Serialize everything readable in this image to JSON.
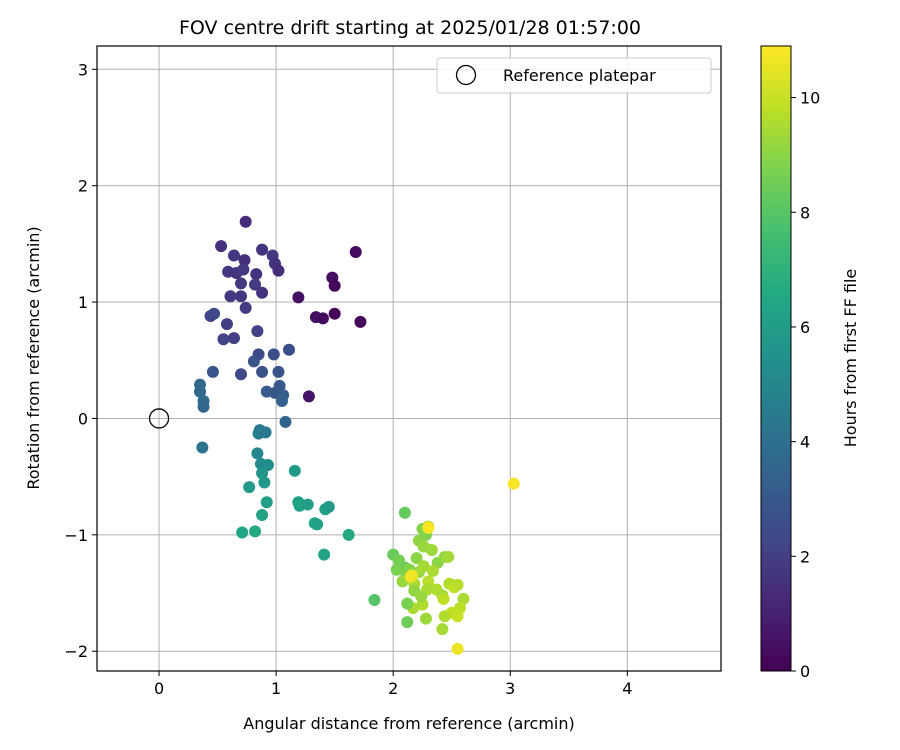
{
  "chart_data": {
    "type": "scatter",
    "title": "FOV centre drift starting at 2025/01/28 01:57:00",
    "xlabel": "Angular distance from reference (arcmin)",
    "ylabel": "Rotation from reference (arcmin)",
    "xlim": [
      -0.53,
      4.8
    ],
    "ylim": [
      -2.17,
      3.2
    ],
    "xticks": [
      0,
      1,
      2,
      3,
      4
    ],
    "yticks": [
      -2,
      -1,
      0,
      1,
      2,
      3
    ],
    "grid": true,
    "legend": {
      "position": "top-right",
      "entries": [
        {
          "label": "Reference platepar",
          "marker": "open-circle"
        }
      ]
    },
    "reference_point": {
      "x": 0,
      "y": 0
    },
    "colorbar": {
      "label": "Hours from first FF file",
      "colormap": "viridis",
      "range": [
        0,
        10.9
      ],
      "ticks": [
        0,
        2,
        4,
        6,
        8,
        10
      ]
    },
    "series": [
      {
        "point_fields": [
          "x",
          "y",
          "hours"
        ],
        "points": [
          [
            1.68,
            1.43,
            0.3
          ],
          [
            1.48,
            1.21,
            0.4
          ],
          [
            1.5,
            1.14,
            0.2
          ],
          [
            1.19,
            1.04,
            0.5
          ],
          [
            1.5,
            0.9,
            0.1
          ],
          [
            1.34,
            0.87,
            0.4
          ],
          [
            1.4,
            0.86,
            0.3
          ],
          [
            1.72,
            0.83,
            0.2
          ],
          [
            1.28,
            0.19,
            0.6
          ],
          [
            0.74,
            1.69,
            1.4
          ],
          [
            0.53,
            1.48,
            1.5
          ],
          [
            0.88,
            1.45,
            1.6
          ],
          [
            0.64,
            1.4,
            1.7
          ],
          [
            0.97,
            1.4,
            1.8
          ],
          [
            0.73,
            1.36,
            1.5
          ],
          [
            0.99,
            1.33,
            1.6
          ],
          [
            0.59,
            1.26,
            1.7
          ],
          [
            0.66,
            1.25,
            1.6
          ],
          [
            0.72,
            1.28,
            1.7
          ],
          [
            1.02,
            1.27,
            1.4
          ],
          [
            0.83,
            1.24,
            1.6
          ],
          [
            0.7,
            1.16,
            1.8
          ],
          [
            0.82,
            1.15,
            1.9
          ],
          [
            0.61,
            1.05,
            1.8
          ],
          [
            0.7,
            1.05,
            1.7
          ],
          [
            0.88,
            1.08,
            1.6
          ],
          [
            0.74,
            0.95,
            1.9
          ],
          [
            0.58,
            0.81,
            2.0
          ],
          [
            0.44,
            0.88,
            2.1
          ],
          [
            0.47,
            0.9,
            2.4
          ],
          [
            0.84,
            0.75,
            2.1
          ],
          [
            0.55,
            0.68,
            2.2
          ],
          [
            0.64,
            0.69,
            2.0
          ],
          [
            0.85,
            0.55,
            2.5
          ],
          [
            0.98,
            0.55,
            2.6
          ],
          [
            1.11,
            0.59,
            2.6
          ],
          [
            0.81,
            0.49,
            2.7
          ],
          [
            0.88,
            0.4,
            2.8
          ],
          [
            0.7,
            0.38,
            2.4
          ],
          [
            0.46,
            0.4,
            2.9
          ],
          [
            1.02,
            0.4,
            2.8
          ],
          [
            1.03,
            0.28,
            3.0
          ],
          [
            0.92,
            0.23,
            3.1
          ],
          [
            0.99,
            0.22,
            3.0
          ],
          [
            1.06,
            0.2,
            3.2
          ],
          [
            1.05,
            0.15,
            3.4
          ],
          [
            1.08,
            -0.03,
            3.5
          ],
          [
            0.35,
            0.29,
            3.6
          ],
          [
            0.35,
            0.23,
            3.7
          ],
          [
            0.38,
            0.15,
            3.8
          ],
          [
            0.38,
            0.1,
            3.6
          ],
          [
            0.37,
            -0.25,
            4.2
          ],
          [
            0.86,
            -0.1,
            4.5
          ],
          [
            0.85,
            -0.13,
            4.6
          ],
          [
            0.91,
            -0.12,
            4.4
          ],
          [
            0.84,
            -0.3,
            5.0
          ],
          [
            0.87,
            -0.39,
            5.2
          ],
          [
            0.93,
            -0.4,
            5.3
          ],
          [
            0.88,
            -0.47,
            5.6
          ],
          [
            0.9,
            -0.55,
            5.8
          ],
          [
            0.77,
            -0.59,
            5.9
          ],
          [
            0.92,
            -0.72,
            6.0
          ],
          [
            0.88,
            -0.83,
            6.2
          ],
          [
            1.16,
            -0.45,
            5.9
          ],
          [
            1.19,
            -0.72,
            6.1
          ],
          [
            1.2,
            -0.75,
            6.3
          ],
          [
            1.27,
            -0.74,
            6.0
          ],
          [
            1.33,
            -0.9,
            6.4
          ],
          [
            1.35,
            -0.91,
            6.2
          ],
          [
            1.42,
            -0.78,
            6.1
          ],
          [
            1.45,
            -0.76,
            5.9
          ],
          [
            1.41,
            -1.17,
            6.3
          ],
          [
            1.62,
            -1.0,
            6.6
          ],
          [
            0.71,
            -0.98,
            6.4
          ],
          [
            0.82,
            -0.97,
            6.6
          ],
          [
            2.1,
            -0.81,
            8.3
          ],
          [
            1.84,
            -1.56,
            8.0
          ],
          [
            2.0,
            -1.17,
            8.4
          ],
          [
            2.05,
            -1.22,
            8.6
          ],
          [
            2.1,
            -1.28,
            8.5
          ],
          [
            2.03,
            -1.3,
            8.7
          ],
          [
            2.11,
            -1.33,
            8.8
          ],
          [
            2.14,
            -1.3,
            8.9
          ],
          [
            2.2,
            -1.2,
            9.0
          ],
          [
            2.22,
            -1.05,
            9.1
          ],
          [
            2.26,
            -1.1,
            9.2
          ],
          [
            2.28,
            -1.0,
            8.8
          ],
          [
            2.3,
            -0.93,
            9.6
          ],
          [
            2.25,
            -0.95,
            8.9
          ],
          [
            2.33,
            -1.13,
            9.3
          ],
          [
            2.38,
            -1.24,
            9.0
          ],
          [
            2.44,
            -1.19,
            9.1
          ],
          [
            2.47,
            -1.19,
            9.4
          ],
          [
            2.08,
            -1.4,
            9.2
          ],
          [
            2.18,
            -1.42,
            9.5
          ],
          [
            2.15,
            -1.36,
            10.8
          ],
          [
            2.22,
            -1.32,
            9.3
          ],
          [
            2.3,
            -1.4,
            9.7
          ],
          [
            2.29,
            -1.47,
            9.5
          ],
          [
            2.37,
            -1.47,
            9.6
          ],
          [
            2.42,
            -1.52,
            9.4
          ],
          [
            2.43,
            -1.55,
            9.8
          ],
          [
            2.48,
            -1.42,
            9.6
          ],
          [
            2.52,
            -1.45,
            9.9
          ],
          [
            2.55,
            -1.43,
            9.7
          ],
          [
            2.6,
            -1.55,
            9.5
          ],
          [
            2.57,
            -1.63,
            9.8
          ],
          [
            2.55,
            -1.7,
            10.0
          ],
          [
            2.5,
            -1.67,
            9.9
          ],
          [
            2.44,
            -1.7,
            9.6
          ],
          [
            2.42,
            -1.81,
            9.4
          ],
          [
            2.25,
            -1.6,
            9.6
          ],
          [
            2.28,
            -1.72,
            9.3
          ],
          [
            2.17,
            -1.63,
            9.5
          ],
          [
            2.12,
            -1.59,
            8.7
          ],
          [
            2.12,
            -1.75,
            8.5
          ],
          [
            2.18,
            -1.48,
            9.1
          ],
          [
            2.24,
            -1.53,
            9.2
          ],
          [
            2.26,
            -1.27,
            9.4
          ],
          [
            2.34,
            -1.31,
            9.5
          ],
          [
            2.3,
            -0.94,
            10.9
          ],
          [
            2.16,
            -1.35,
            10.7
          ],
          [
            3.03,
            -0.56,
            10.8
          ],
          [
            2.55,
            -1.98,
            10.6
          ]
        ]
      }
    ]
  }
}
